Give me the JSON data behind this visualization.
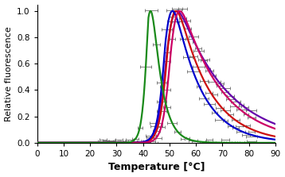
{
  "title": "",
  "xlabel": "Temperature [°C]",
  "ylabel": "Relative fluorescence",
  "xlim": [
    0,
    90
  ],
  "ylim": [
    0,
    1.05
  ],
  "xticks": [
    0,
    10,
    20,
    30,
    40,
    50,
    60,
    70,
    80,
    90
  ],
  "yticks": [
    0,
    0.2,
    0.4,
    0.6,
    0.8,
    1.0
  ],
  "curves": [
    {
      "label": "Green",
      "color": "#1a8a1a",
      "tm": 42.0,
      "k_rise": 0.85,
      "k_fall": 0.28,
      "x_start": 25,
      "x_end": 82
    },
    {
      "label": "Magenta",
      "color": "#cc0066",
      "tm": 50.5,
      "k_rise": 0.65,
      "k_fall": 0.065,
      "x_start": 25,
      "x_end": 82
    },
    {
      "label": "Blue",
      "color": "#0000cc",
      "tm": 48.5,
      "k_rise": 0.65,
      "k_fall": 0.1,
      "x_start": 25,
      "x_end": 82
    },
    {
      "label": "Red",
      "color": "#cc1010",
      "tm": 49.5,
      "k_rise": 0.62,
      "k_fall": 0.085,
      "x_start": 25,
      "x_end": 82
    },
    {
      "label": "Purple",
      "color": "#6600aa",
      "tm": 49.0,
      "k_rise": 0.6,
      "k_fall": 0.055,
      "x_start": 25,
      "x_end": 82
    }
  ],
  "data_color": "#606060",
  "xerr_size": 1.5,
  "data_point_step": 2,
  "background_color": "#ffffff",
  "xlabel_fontsize": 9,
  "ylabel_fontsize": 8,
  "tick_fontsize": 7.5,
  "linewidth": 1.6
}
